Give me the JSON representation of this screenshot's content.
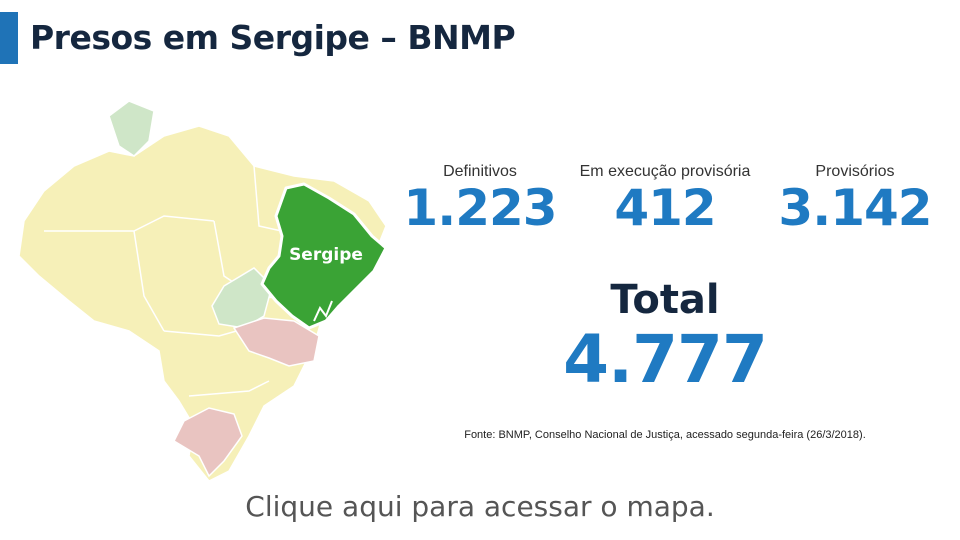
{
  "header": {
    "title": "Presos em Sergipe – BNMP"
  },
  "map": {
    "highlight_label": "Sergipe",
    "colors": {
      "highlight": "#3aa335",
      "base": "#f6f0b8",
      "green_region": "#cfe6c8",
      "red_region": "#e9c4c1",
      "border": "#ffffff"
    }
  },
  "stats": {
    "definitivos": {
      "label": "Definitivos",
      "value": "1.223"
    },
    "execucao": {
      "label": "Em execução provisória",
      "value": "412"
    },
    "provisorios": {
      "label": "Provisórios",
      "value": "3.142"
    }
  },
  "total": {
    "label": "Total",
    "value": "4.777"
  },
  "source": "Fonte: BNMP, Conselho Nacional de Justiça, acessado segunda-feira (26/3/2018).",
  "cta": "Clique aqui para acessar o mapa.",
  "colors": {
    "accent": "#1f73b7",
    "title": "#15273f",
    "number": "#1f7ac2"
  }
}
